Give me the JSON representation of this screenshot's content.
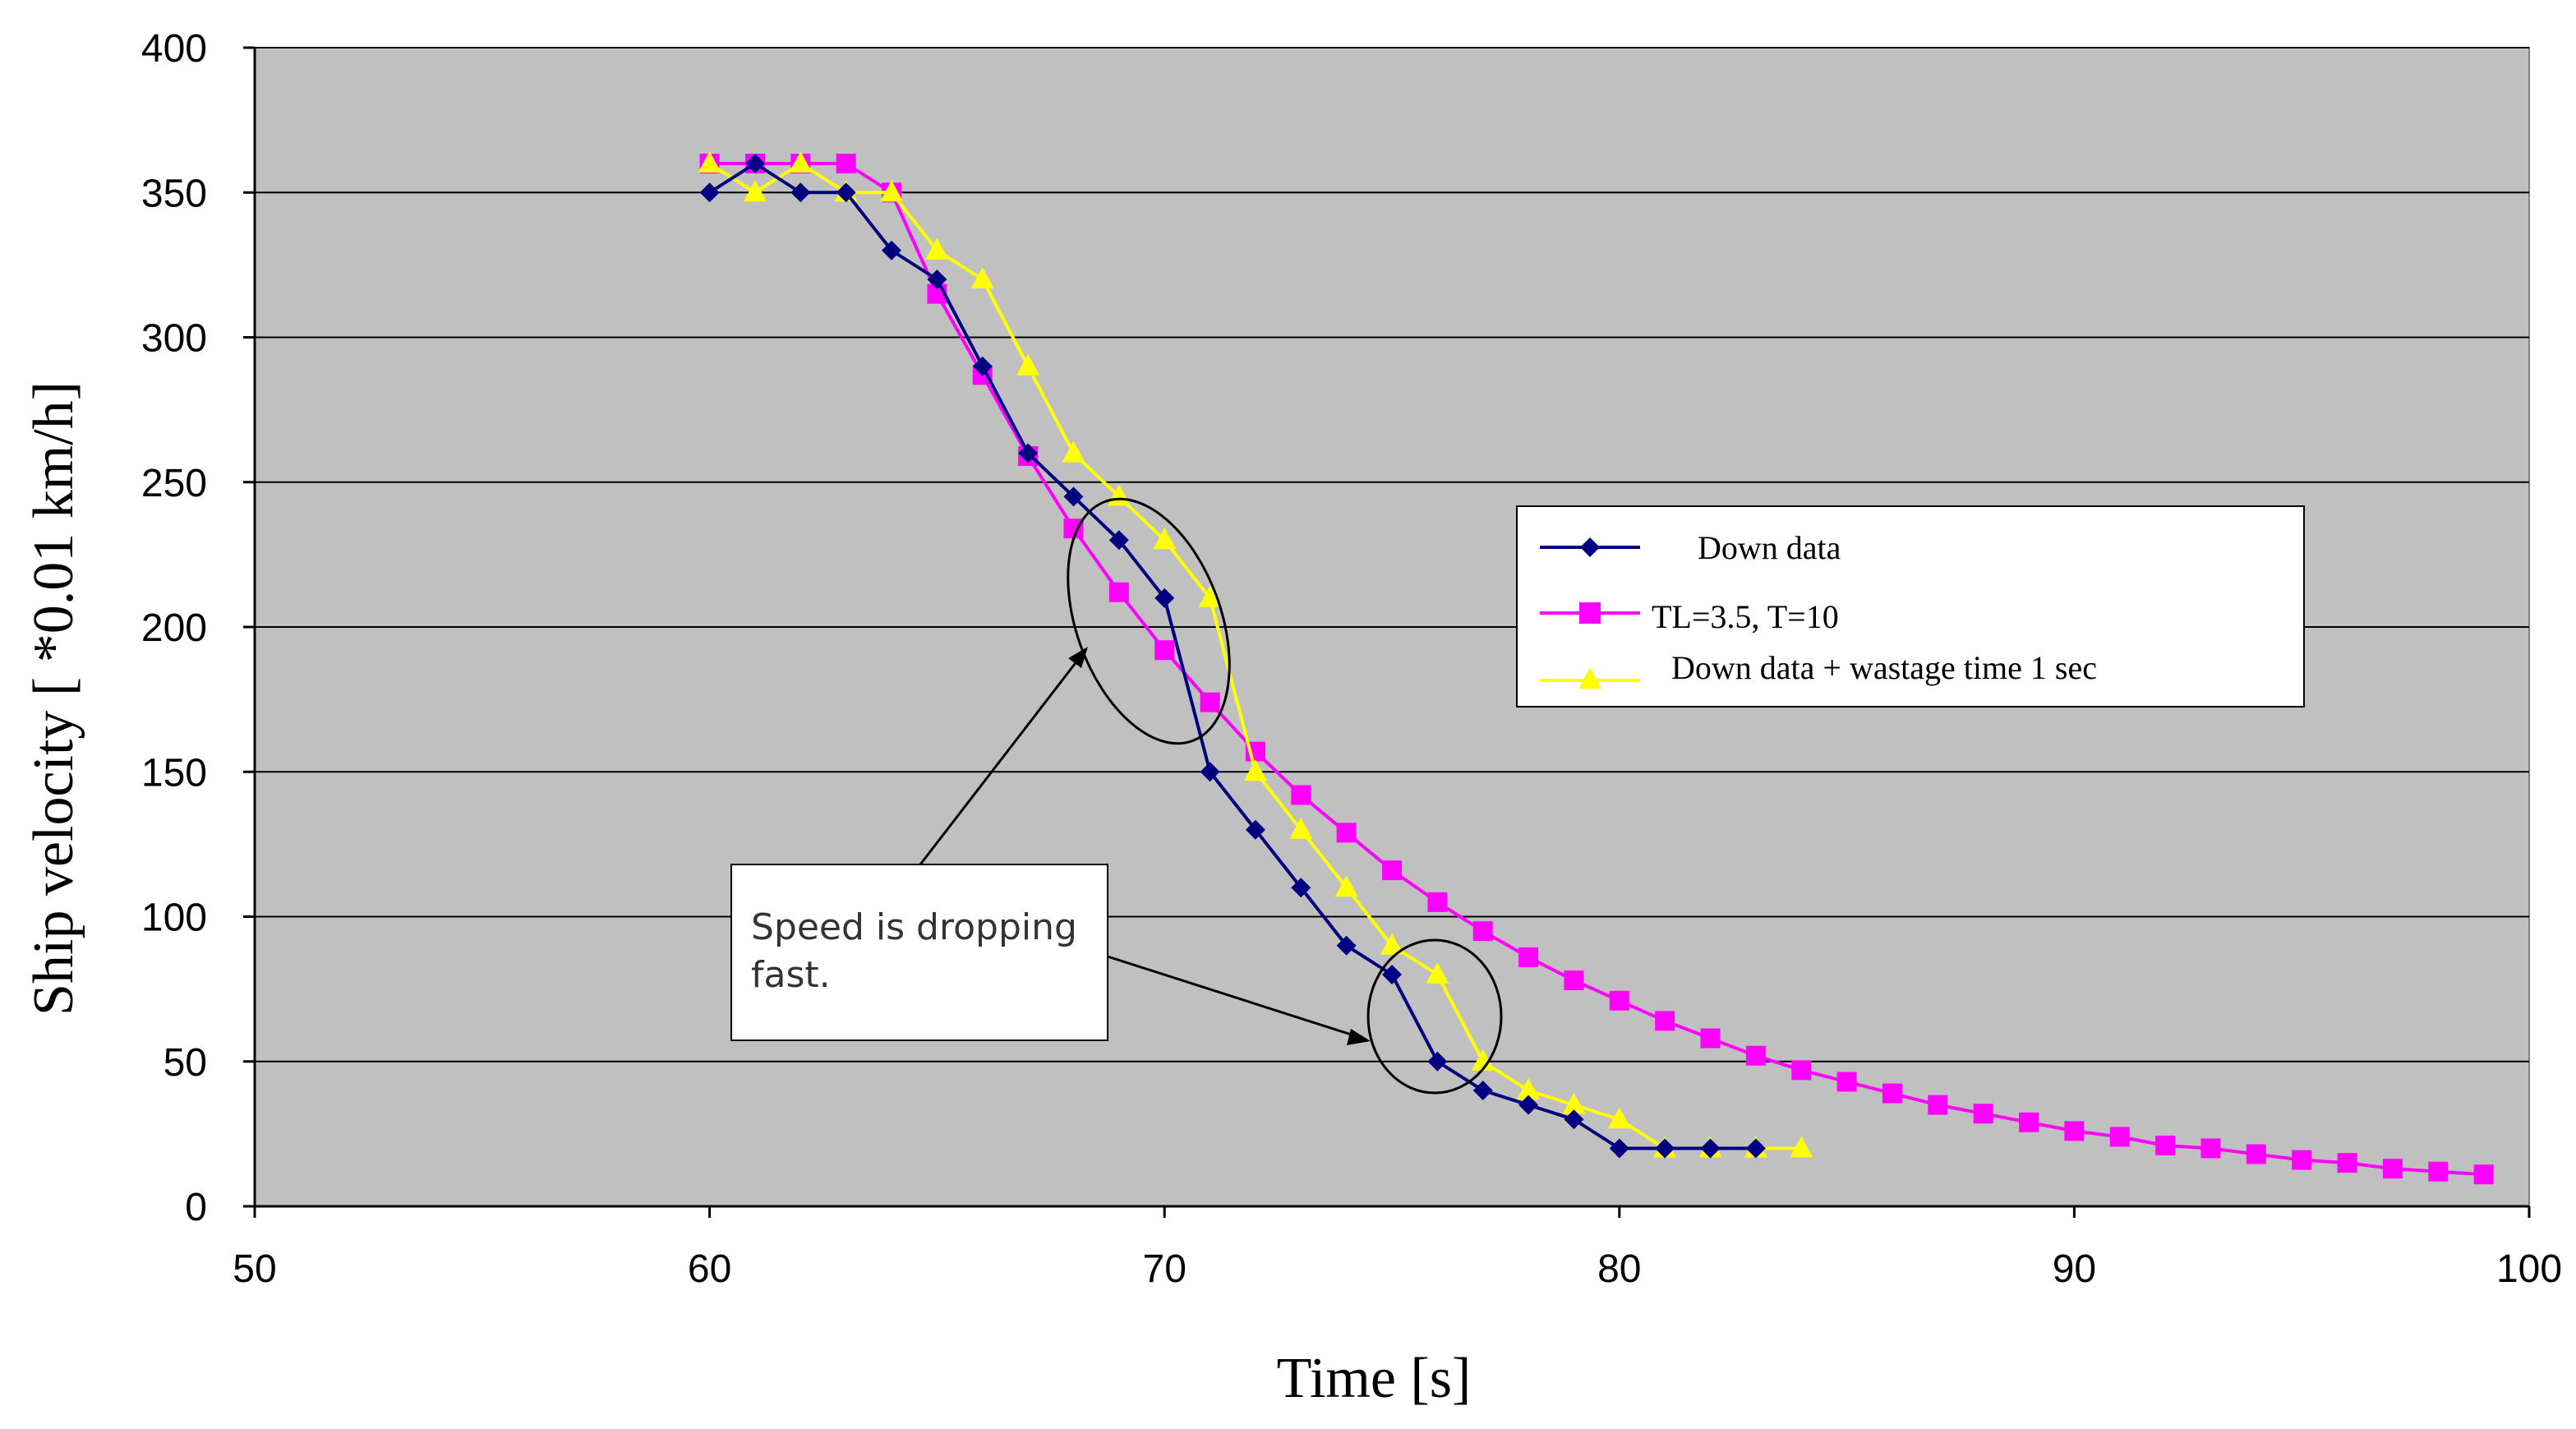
{
  "chart_data": {
    "type": "line",
    "xlabel": "Time [s]",
    "ylabel": "Ship velocity [ *0.01 km/h]",
    "xlim": [
      50,
      100
    ],
    "ylim": [
      0,
      400
    ],
    "xticks": [
      50,
      60,
      70,
      80,
      90,
      100
    ],
    "yticks": [
      0,
      50,
      100,
      150,
      200,
      250,
      300,
      350,
      400
    ],
    "grid": "horizontal",
    "legend_position": "center-right",
    "plot_background": "#c0c0c0",
    "series": [
      {
        "name": "Down data",
        "color": "#000080",
        "marker": "diamond",
        "x": [
          60,
          61,
          62,
          63,
          64,
          65,
          66,
          67,
          68,
          69,
          70,
          71,
          72,
          73,
          74,
          75,
          76,
          77,
          78,
          79,
          80,
          81,
          82,
          83
        ],
        "y": [
          350,
          360,
          350,
          350,
          330,
          320,
          290,
          260,
          245,
          230,
          210,
          150,
          130,
          110,
          90,
          80,
          50,
          40,
          35,
          30,
          20,
          20,
          20,
          20
        ]
      },
      {
        "name": "TL=3.5, T=10",
        "color": "#ff00ff",
        "marker": "square",
        "x": [
          60,
          61,
          62,
          63,
          64,
          65,
          66,
          67,
          68,
          69,
          70,
          71,
          72,
          73,
          74,
          75,
          76,
          77,
          78,
          79,
          80,
          81,
          82,
          83,
          84,
          85,
          86,
          87,
          88,
          89,
          90,
          91,
          92,
          93,
          94,
          95,
          96,
          97,
          98,
          99
        ],
        "y": [
          360,
          360,
          360,
          360,
          350,
          315,
          287,
          259,
          234,
          212,
          192,
          174,
          157,
          142,
          129,
          116,
          105,
          95,
          86,
          78,
          71,
          64,
          58,
          52,
          47,
          43,
          39,
          35,
          32,
          29,
          26,
          24,
          21,
          20,
          18,
          16,
          15,
          13,
          12,
          11
        ]
      },
      {
        "name": "Down data + wastage time 1 sec",
        "color": "#ffff00",
        "marker": "triangle",
        "x": [
          60,
          61,
          62,
          63,
          64,
          65,
          66,
          67,
          68,
          69,
          70,
          71,
          72,
          73,
          74,
          75,
          76,
          77,
          78,
          79,
          80,
          81,
          82,
          83,
          84
        ],
        "y": [
          360,
          350,
          360,
          350,
          350,
          330,
          320,
          290,
          260,
          245,
          230,
          210,
          150,
          130,
          110,
          90,
          80,
          50,
          40,
          35,
          30,
          20,
          20,
          20,
          20
        ]
      }
    ],
    "annotation": {
      "text_lines": [
        "Speed is dropping",
        "fast."
      ]
    }
  }
}
